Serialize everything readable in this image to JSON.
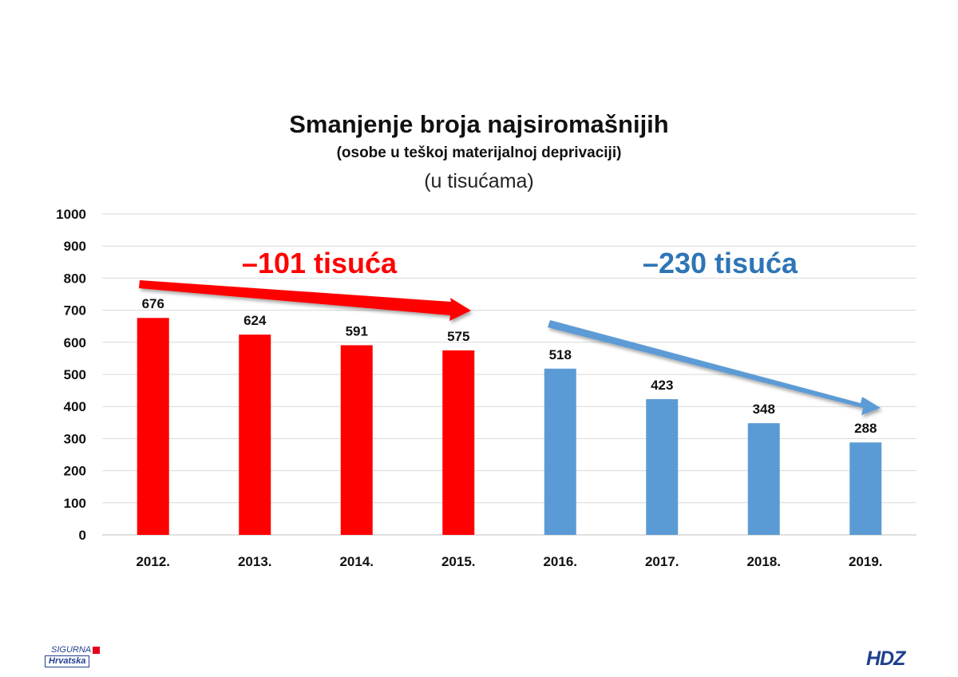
{
  "chart_data": {
    "type": "bar",
    "title": "Smanjenje broja najsiromašnijih",
    "subtitle": "(osobe u teškoj materijalnoj deprivaciji)",
    "unit_note": "(u tisućama)",
    "categories": [
      "2012.",
      "2013.",
      "2014.",
      "2015.",
      "2016.",
      "2017.",
      "2018.",
      "2019."
    ],
    "values": [
      676,
      624,
      591,
      575,
      518,
      423,
      348,
      288
    ],
    "bar_colors": [
      "#ff0000",
      "#ff0000",
      "#ff0000",
      "#ff0000",
      "#5b9bd5",
      "#5b9bd5",
      "#5b9bd5",
      "#5b9bd5"
    ],
    "ylim": [
      0,
      1000
    ],
    "yticks": [
      0,
      100,
      200,
      300,
      400,
      500,
      600,
      700,
      800,
      900,
      1000
    ],
    "grid": true,
    "annotations": [
      {
        "text": "–101 tisuća",
        "color": "#ff0000"
      },
      {
        "text": "–230 tisuća",
        "color": "#2e75b6"
      }
    ]
  },
  "logos": {
    "left_top": "SIGURNA",
    "left_bottom": "Hrvatska",
    "right": "HDZ"
  }
}
